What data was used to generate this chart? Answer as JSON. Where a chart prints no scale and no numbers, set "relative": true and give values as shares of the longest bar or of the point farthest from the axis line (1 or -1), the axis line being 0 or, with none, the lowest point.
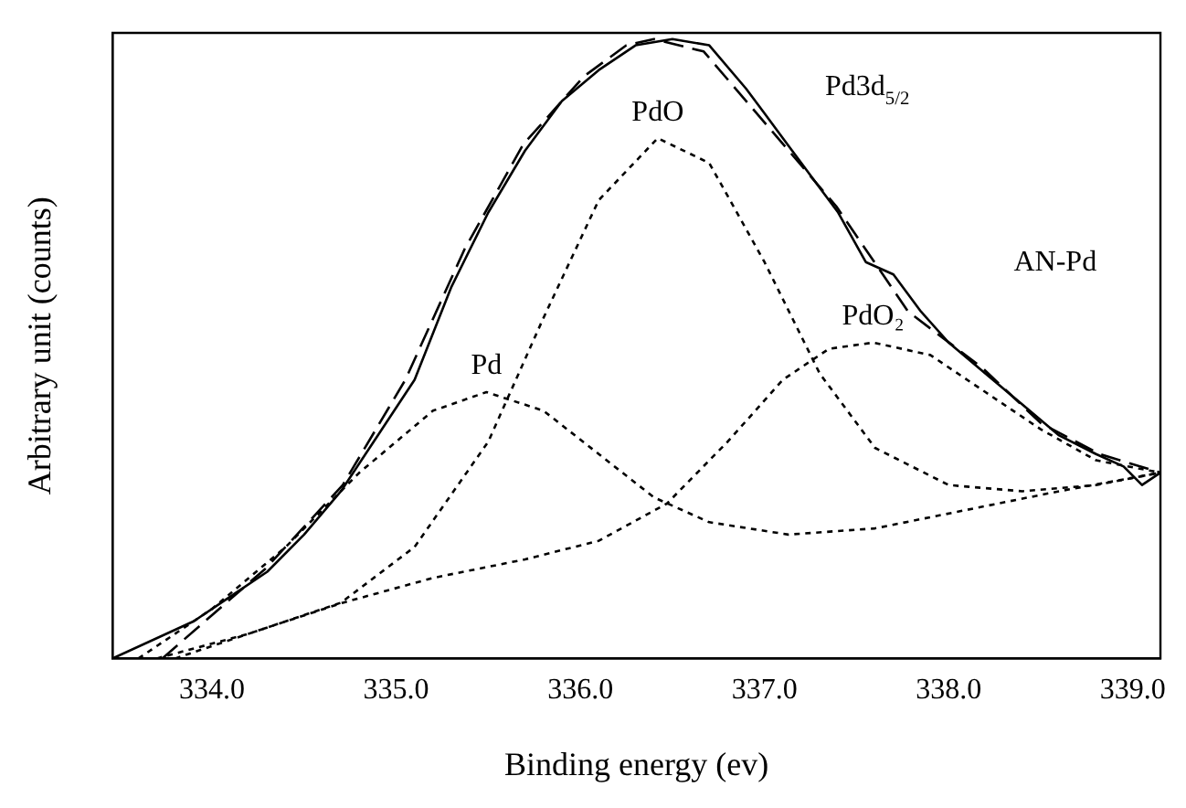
{
  "chart_data": {
    "type": "line",
    "relative": true,
    "xlabel": "Binding energy (ev)",
    "ylabel": "Arbitrary unit (counts)",
    "xlim": [
      333.46,
      339.15
    ],
    "xticks": [
      {
        "value": 334,
        "label": "334.0"
      },
      {
        "value": 335,
        "label": "335.0"
      },
      {
        "value": 336,
        "label": "336.0"
      },
      {
        "value": 337,
        "label": "337.0"
      },
      {
        "value": 338,
        "label": "338.0"
      },
      {
        "value": 339,
        "label": "339.0"
      }
    ],
    "grid": false,
    "legend": false,
    "marker": "none",
    "annotations": [
      "Pd3d$_{5/2}$",
      "AN-Pd"
    ],
    "series": [
      {
        "color": "#000000",
        "line_style": "solid",
        "x": [
          333.46,
          333.9,
          334.1,
          334.3,
          334.5,
          334.7,
          334.9,
          335.1,
          335.3,
          335.5,
          335.7,
          335.9,
          336.1,
          336.3,
          336.5,
          336.7,
          336.9,
          337.0,
          337.1,
          337.3,
          337.4,
          337.55,
          337.7,
          337.85,
          338.0,
          338.2,
          338.4,
          338.6,
          338.8,
          338.95,
          339.05,
          339.15
        ],
        "values": [
          0,
          0.06,
          0.1,
          0.14,
          0.2,
          0.27,
          0.36,
          0.45,
          0.6,
          0.72,
          0.82,
          0.9,
          0.95,
          0.99,
          1.0,
          0.99,
          0.92,
          0.88,
          0.84,
          0.76,
          0.72,
          0.64,
          0.62,
          0.56,
          0.51,
          0.46,
          0.41,
          0.36,
          0.33,
          0.31,
          0.28,
          0.3
        ]
      },
      {
        "color": "#000000",
        "line_style": "dashed",
        "x": [
          333.73,
          334.0,
          334.29,
          334.71,
          335.05,
          335.37,
          335.69,
          336.02,
          336.25,
          336.4,
          336.67,
          337.03,
          337.39,
          337.78,
          338.18,
          338.5,
          338.82,
          339.15
        ],
        "values": [
          0,
          0.07,
          0.145,
          0.28,
          0.45,
          0.66,
          0.83,
          0.94,
          0.99,
          1.0,
          0.98,
          0.855,
          0.73,
          0.56,
          0.47,
          0.38,
          0.33,
          0.3
        ]
      },
      {
        "name": "Pd",
        "color": "#000000",
        "line_style": "dotted",
        "x": [
          333.6,
          334.0,
          334.4,
          334.8,
          335.2,
          335.49,
          335.8,
          336.1,
          336.4,
          336.7,
          337.13,
          337.6,
          338.1,
          338.6,
          339.15
        ],
        "values": [
          0,
          0.08,
          0.18,
          0.3,
          0.4,
          0.43,
          0.4,
          0.33,
          0.26,
          0.22,
          0.2,
          0.21,
          0.24,
          0.27,
          0.3
        ]
      },
      {
        "name": "PdO",
        "color": "#000000",
        "line_style": "dotted",
        "x": [
          333.7,
          334.2,
          334.7,
          335.1,
          335.5,
          335.8,
          336.1,
          336.42,
          336.7,
          337.0,
          337.3,
          337.6,
          338.0,
          338.4,
          338.8,
          339.15
        ],
        "values": [
          0,
          0.04,
          0.09,
          0.18,
          0.35,
          0.55,
          0.74,
          0.84,
          0.8,
          0.64,
          0.46,
          0.34,
          0.28,
          0.27,
          0.28,
          0.3
        ]
      },
      {
        "name": "PdO₂",
        "color": "#000000",
        "line_style": "dotted",
        "x": [
          333.8,
          334.3,
          334.71,
          335.2,
          335.7,
          336.1,
          336.47,
          336.8,
          337.1,
          337.35,
          337.59,
          337.9,
          338.2,
          338.5,
          338.8,
          339.15
        ],
        "values": [
          0,
          0.05,
          0.09,
          0.13,
          0.16,
          0.19,
          0.25,
          0.35,
          0.45,
          0.5,
          0.51,
          0.49,
          0.43,
          0.37,
          0.32,
          0.3
        ]
      }
    ]
  }
}
